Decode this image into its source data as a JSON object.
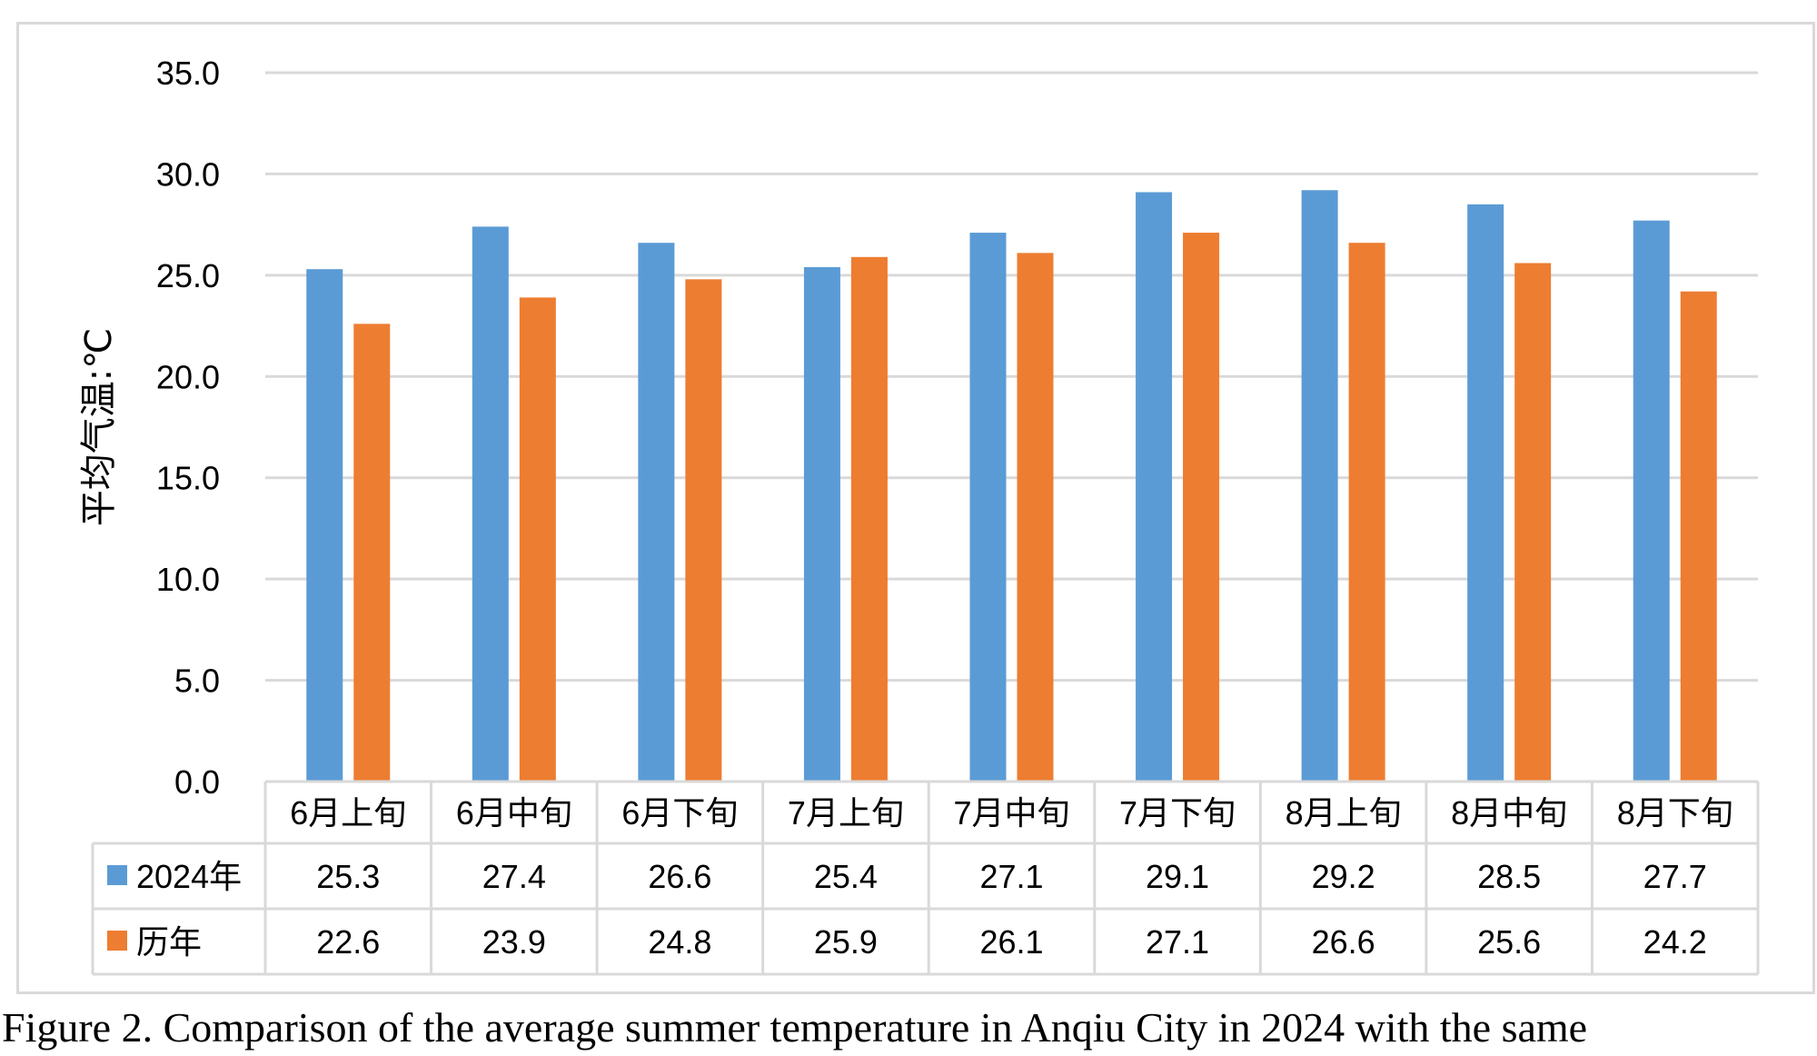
{
  "chart_data": {
    "type": "bar",
    "categories": [
      "6月上旬",
      "6月中旬",
      "6月下旬",
      "7月上旬",
      "7月中旬",
      "7月下旬",
      "8月上旬",
      "8月中旬",
      "8月下旬"
    ],
    "series": [
      {
        "name": "2024年",
        "color": "#5b9bd5",
        "values": [
          25.3,
          27.4,
          26.6,
          25.4,
          27.1,
          29.1,
          29.2,
          28.5,
          27.7
        ]
      },
      {
        "name": "历年",
        "color": "#ed7d31",
        "values": [
          22.6,
          23.9,
          24.8,
          25.9,
          26.1,
          27.1,
          26.6,
          25.6,
          24.2
        ]
      }
    ],
    "ylabel": "平均气温:℃",
    "xlabel": "",
    "ylim": [
      0,
      35
    ],
    "yticks": [
      "0.0",
      "5.0",
      "10.0",
      "15.0",
      "20.0",
      "25.0",
      "30.0",
      "35.0"
    ],
    "grid": true,
    "legend": "data-table"
  },
  "caption": "Figure 2. Comparison of the average summer temperature in Anqiu City in 2024 with the same"
}
